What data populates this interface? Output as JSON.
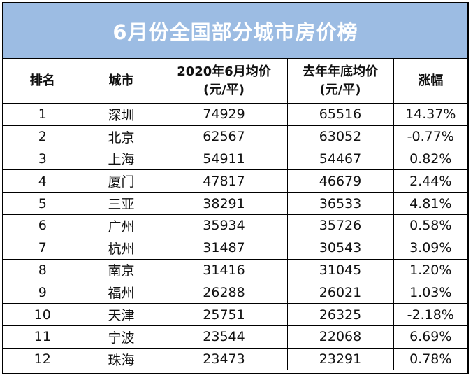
{
  "title": "6月份全国部分城市房价榜",
  "colors": {
    "title_bg": "#9cbce3",
    "title_text": "#ffffff",
    "positive": "#d0261e",
    "negative": "#111111"
  },
  "headers": {
    "rank": "排名",
    "city": "城市",
    "price_2020_june_line1": "2020年6月均价",
    "price_2020_june_line2": "(元/平)",
    "price_last_year_line1": "去年年底均价",
    "price_last_year_line2": "(元/平)",
    "change": "涨幅"
  },
  "chart_data": {
    "type": "table",
    "title": "6月份全国部分城市房价榜",
    "columns": [
      "排名",
      "城市",
      "2020年6月均价(元/平)",
      "去年年底均价(元/平)",
      "涨幅"
    ],
    "rows": [
      {
        "rank": "1",
        "city": "深圳",
        "price_june": "74929",
        "price_last": "65516",
        "change": "14.37%"
      },
      {
        "rank": "2",
        "city": "北京",
        "price_june": "62567",
        "price_last": "63052",
        "change": "-0.77%"
      },
      {
        "rank": "3",
        "city": "上海",
        "price_june": "54911",
        "price_last": "54467",
        "change": "0.82%"
      },
      {
        "rank": "4",
        "city": "厦门",
        "price_june": "47817",
        "price_last": "46679",
        "change": "2.44%"
      },
      {
        "rank": "5",
        "city": "三亚",
        "price_june": "38291",
        "price_last": "36533",
        "change": "4.81%"
      },
      {
        "rank": "6",
        "city": "广州",
        "price_june": "35934",
        "price_last": "35726",
        "change": "0.58%"
      },
      {
        "rank": "7",
        "city": "杭州",
        "price_june": "31487",
        "price_last": "30543",
        "change": "3.09%"
      },
      {
        "rank": "8",
        "city": "南京",
        "price_june": "31416",
        "price_last": "31045",
        "change": "1.20%"
      },
      {
        "rank": "9",
        "city": "福州",
        "price_june": "26288",
        "price_last": "26021",
        "change": "1.03%"
      },
      {
        "rank": "10",
        "city": "天津",
        "price_june": "25751",
        "price_last": "26325",
        "change": "-2.18%"
      },
      {
        "rank": "11",
        "city": "宁波",
        "price_june": "23544",
        "price_last": "22068",
        "change": "6.69%"
      },
      {
        "rank": "12",
        "city": "珠海",
        "price_june": "23473",
        "price_last": "23291",
        "change": "0.78%"
      }
    ]
  }
}
